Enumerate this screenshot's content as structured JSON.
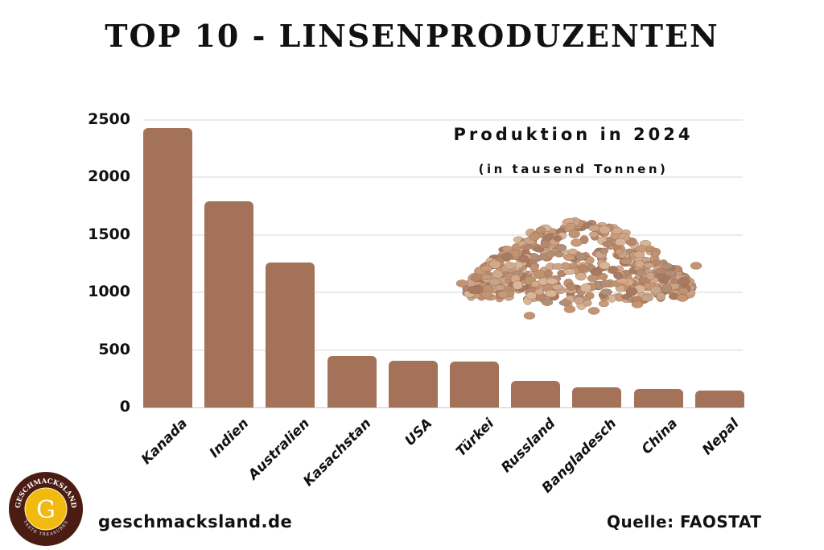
{
  "title": "TOP 10 - LINSENPRODUZENTEN",
  "annotation": {
    "line1": "Produktion in 2024",
    "line2": "(in tausend Tonnen)"
  },
  "footer": {
    "site": "geschmacksland.de",
    "source": "Quelle: FAOSTAT",
    "logo_top_text": "GESCHMACKSLAND",
    "logo_bottom_text": "TASTE TREASURES",
    "logo_letter": "G"
  },
  "colors": {
    "bar": "#a37259",
    "grid": "#ebebeb",
    "logo_ring": "#4a1c12",
    "logo_center": "#f2b90f"
  },
  "chart_data": {
    "type": "bar",
    "title": "TOP 10 - LINSENPRODUZENTEN",
    "subtitle": "Produktion in 2024 (in tausend Tonnen)",
    "xlabel": "",
    "ylabel": "",
    "ylim": [
      0,
      2500
    ],
    "yticks": [
      0,
      500,
      1000,
      1500,
      2000,
      2500
    ],
    "grid": true,
    "categories": [
      "Kanada",
      "Indien",
      "Australien",
      "Kasachstan",
      "USA",
      "Türkei",
      "Russland",
      "Bangladesch",
      "China",
      "Nepal"
    ],
    "values": [
      2430,
      1790,
      1260,
      448,
      405,
      396,
      228,
      172,
      158,
      144
    ]
  }
}
